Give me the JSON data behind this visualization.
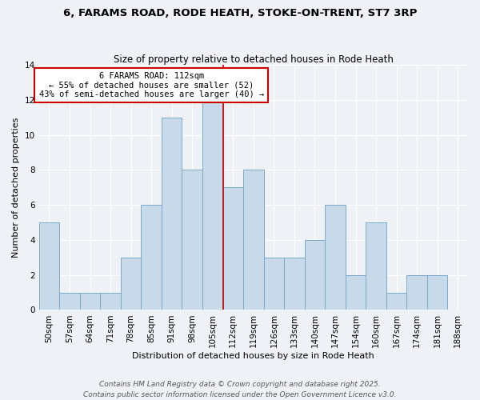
{
  "title": "6, FARAMS ROAD, RODE HEATH, STOKE-ON-TRENT, ST7 3RP",
  "subtitle": "Size of property relative to detached houses in Rode Heath",
  "xlabel": "Distribution of detached houses by size in Rode Heath",
  "ylabel": "Number of detached properties",
  "categories": [
    "50sqm",
    "57sqm",
    "64sqm",
    "71sqm",
    "78sqm",
    "85sqm",
    "91sqm",
    "98sqm",
    "105sqm",
    "112sqm",
    "119sqm",
    "126sqm",
    "133sqm",
    "140sqm",
    "147sqm",
    "154sqm",
    "160sqm",
    "167sqm",
    "174sqm",
    "181sqm",
    "188sqm"
  ],
  "values": [
    5,
    1,
    1,
    1,
    3,
    6,
    11,
    8,
    12,
    7,
    8,
    3,
    3,
    4,
    6,
    2,
    5,
    1,
    2,
    2,
    0
  ],
  "bar_color": "#c8daea",
  "bar_edge_color": "#7aaacb",
  "vline_color": "#cc0000",
  "vline_position": 9,
  "annotation_title": "6 FARAMS ROAD: 112sqm",
  "annotation_line1": "← 55% of detached houses are smaller (52)",
  "annotation_line2": "43% of semi-detached houses are larger (40) →",
  "annotation_box_color": "#ffffff",
  "annotation_box_edge": "#cc0000",
  "ylim": [
    0,
    14
  ],
  "yticks": [
    0,
    2,
    4,
    6,
    8,
    10,
    12,
    14
  ],
  "footer1": "Contains HM Land Registry data © Crown copyright and database right 2025.",
  "footer2": "Contains public sector information licensed under the Open Government Licence v3.0.",
  "background_color": "#eef2f7",
  "title_fontsize": 9.5,
  "subtitle_fontsize": 8.5,
  "xlabel_fontsize": 8,
  "ylabel_fontsize": 8,
  "tick_fontsize": 7.5,
  "annotation_fontsize": 7.5,
  "footer_fontsize": 6.5
}
